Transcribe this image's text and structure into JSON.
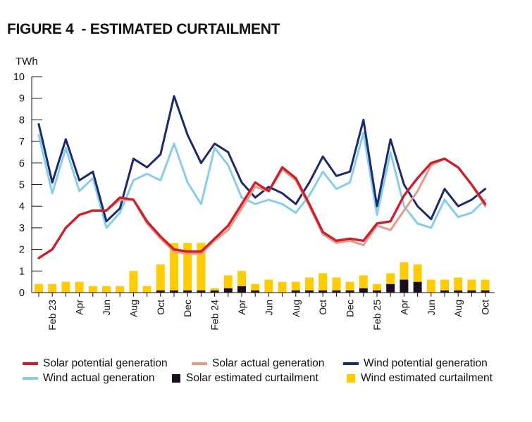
{
  "title": "FIGURE 4  - ESTIMATED CURTAILMENT",
  "colors": {
    "solar_potential": "#cc1f2b",
    "solar_actual": "#e9998a",
    "wind_potential": "#1c2a6b",
    "wind_actual": "#86cdea",
    "solar_curtailment": "#1a0f1f",
    "wind_curtailment": "#ffcc00",
    "axis": "#111111"
  },
  "legend": [
    {
      "label": "Solar potential generation",
      "kind": "line",
      "color_key": "solar_potential"
    },
    {
      "label": "Solar actual generation",
      "kind": "line",
      "color_key": "solar_actual"
    },
    {
      "label": "Wind potential generation",
      "kind": "line",
      "color_key": "wind_potential"
    },
    {
      "label": "Wind actual generation",
      "kind": "line",
      "color_key": "wind_actual"
    },
    {
      "label": "Solar estimated curtailment",
      "kind": "box",
      "color_key": "solar_curtailment"
    },
    {
      "label": "Wind estimated curtailment",
      "kind": "box",
      "color_key": "wind_curtailment"
    }
  ],
  "chart_data": {
    "type": "bar+line",
    "ylabel": "TWh",
    "ylim": [
      0,
      10
    ],
    "yticks": [
      0,
      1,
      2,
      3,
      4,
      5,
      6,
      7,
      8,
      9,
      10
    ],
    "categories": [
      "Jan 23",
      "Feb 23",
      "Mar 23",
      "Apr 23",
      "May 23",
      "Jun 23",
      "Jul 23",
      "Aug 23",
      "Sep 23",
      "Oct 23",
      "Nov 23",
      "Dec 23",
      "Jan 24",
      "Feb 24",
      "Mar 24",
      "Apr 24",
      "May 24",
      "Jun 24",
      "Jul 24",
      "Aug 24",
      "Sep 24",
      "Oct 24",
      "Nov 24",
      "Dec 24",
      "Jan 25",
      "Feb 25",
      "Mar 25",
      "Apr 25",
      "May 25",
      "Jun 25",
      "Jul 25",
      "Aug 25",
      "Sep 25",
      "Oct 25"
    ],
    "xtick_labels": [
      {
        "index": 1,
        "label": "Feb 23"
      },
      {
        "index": 3,
        "label": "Apr"
      },
      {
        "index": 5,
        "label": "Jun"
      },
      {
        "index": 7,
        "label": "Aug"
      },
      {
        "index": 9,
        "label": "Oct"
      },
      {
        "index": 11,
        "label": "Dec"
      },
      {
        "index": 13,
        "label": "Feb 24"
      },
      {
        "index": 15,
        "label": "Apr"
      },
      {
        "index": 17,
        "label": "Jun"
      },
      {
        "index": 19,
        "label": "Aug"
      },
      {
        "index": 21,
        "label": "Oct"
      },
      {
        "index": 23,
        "label": "Dec"
      },
      {
        "index": 25,
        "label": "Feb 25"
      },
      {
        "index": 27,
        "label": "Apr"
      },
      {
        "index": 29,
        "label": "Jun"
      },
      {
        "index": 31,
        "label": "Aug"
      },
      {
        "index": 33,
        "label": "Oct"
      }
    ],
    "series": [
      {
        "name": "Wind estimated curtailment",
        "type": "stacked-bar",
        "color_key": "wind_curtailment",
        "values": [
          0.4,
          0.4,
          0.5,
          0.5,
          0.3,
          0.3,
          0.3,
          1.0,
          0.3,
          1.2,
          2.2,
          2.2,
          2.2,
          0.1,
          0.6,
          0.7,
          0.3,
          0.6,
          0.5,
          0.4,
          0.6,
          0.8,
          0.6,
          0.4,
          0.6,
          0.3,
          0.5,
          0.8,
          0.8,
          0.6,
          0.5,
          0.6,
          0.5,
          0.5
        ]
      },
      {
        "name": "Solar estimated curtailment",
        "type": "stacked-bar",
        "color_key": "solar_curtailment",
        "values": [
          0,
          0,
          0,
          0,
          0,
          0,
          0,
          0,
          0,
          0.1,
          0.1,
          0.1,
          0.1,
          0.1,
          0.2,
          0.3,
          0.1,
          0,
          0,
          0.1,
          0.1,
          0.1,
          0.1,
          0.1,
          0.2,
          0.1,
          0.4,
          0.6,
          0.5,
          0,
          0.1,
          0.1,
          0.1,
          0.1
        ]
      },
      {
        "name": "Solar potential generation",
        "type": "line",
        "color_key": "solar_potential",
        "values": [
          1.6,
          2.0,
          3.0,
          3.6,
          3.8,
          3.8,
          4.4,
          4.3,
          3.3,
          2.6,
          2.0,
          1.9,
          1.9,
          2.5,
          3.1,
          4.1,
          5.1,
          4.7,
          5.8,
          5.3,
          4.1,
          2.8,
          2.4,
          2.5,
          2.4,
          3.2,
          3.3,
          4.5,
          5.3,
          6.0,
          6.2,
          5.8,
          5.0,
          4.1
        ]
      },
      {
        "name": "Solar actual generation",
        "type": "line",
        "color_key": "solar_actual",
        "values": [
          1.6,
          2.0,
          3.0,
          3.6,
          3.8,
          3.8,
          4.3,
          4.3,
          3.2,
          2.5,
          1.9,
          1.8,
          1.8,
          2.4,
          2.9,
          3.9,
          4.9,
          4.7,
          5.7,
          5.2,
          4.0,
          2.7,
          2.3,
          2.4,
          2.2,
          3.1,
          2.9,
          3.8,
          4.7,
          5.9,
          6.2,
          5.8,
          5.0,
          4.0
        ]
      },
      {
        "name": "Wind potential generation",
        "type": "line",
        "color_key": "wind_potential",
        "values": [
          7.8,
          5.1,
          7.1,
          5.2,
          5.6,
          3.3,
          3.9,
          6.2,
          5.8,
          6.4,
          9.1,
          7.3,
          6.0,
          6.9,
          6.5,
          5.1,
          4.4,
          4.9,
          4.6,
          4.1,
          5.1,
          6.3,
          5.4,
          5.6,
          8.0,
          4.0,
          7.1,
          5.0,
          4.0,
          3.4,
          4.8,
          4.0,
          4.3,
          4.8
        ]
      },
      {
        "name": "Wind actual generation",
        "type": "line",
        "color_key": "wind_actual",
        "values": [
          7.3,
          4.6,
          6.7,
          4.7,
          5.3,
          3.0,
          3.7,
          5.2,
          5.5,
          5.2,
          6.9,
          5.1,
          4.1,
          6.7,
          5.9,
          4.4,
          4.1,
          4.3,
          4.1,
          3.7,
          4.5,
          5.6,
          4.8,
          5.1,
          7.4,
          3.6,
          6.5,
          4.0,
          3.2,
          3.0,
          4.3,
          3.5,
          3.7,
          4.3
        ]
      }
    ]
  }
}
